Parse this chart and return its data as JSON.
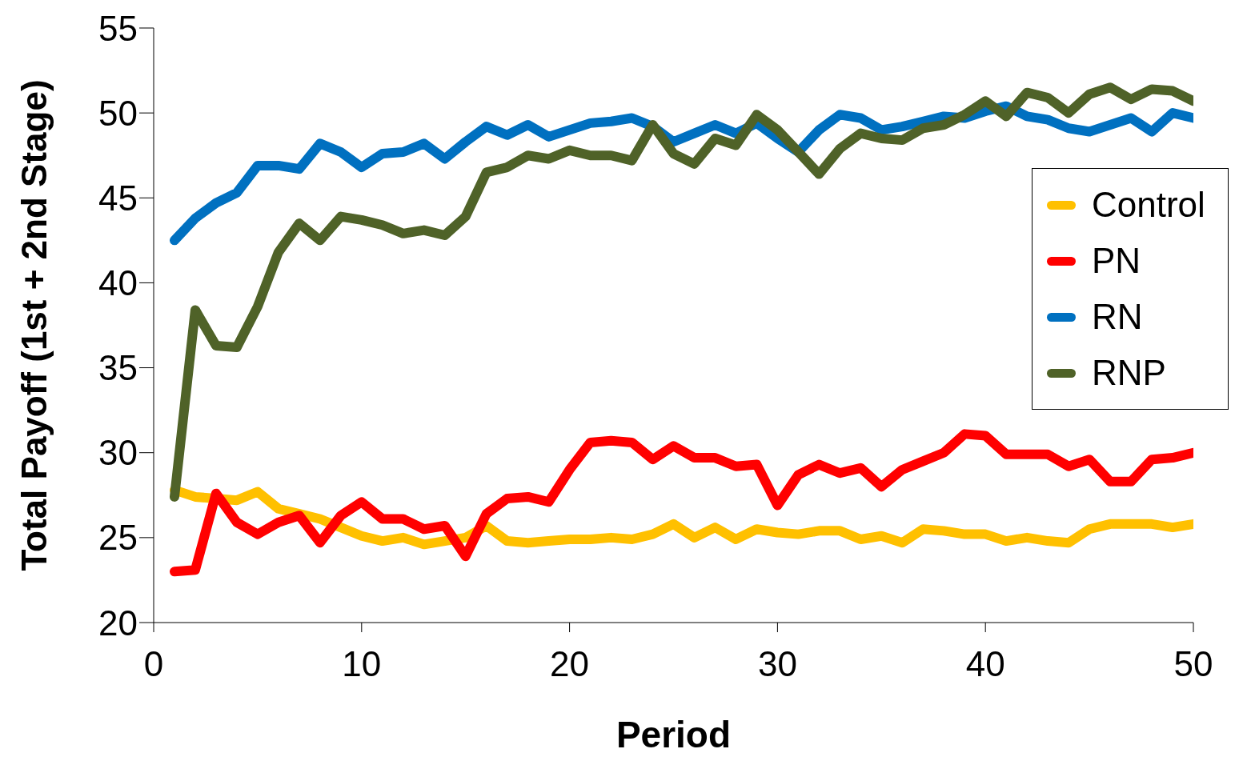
{
  "chart_data": {
    "type": "line",
    "xlabel": "Period",
    "ylabel": "Total Payoff (1st + 2nd Stage)",
    "x": [
      1,
      2,
      3,
      4,
      5,
      6,
      7,
      8,
      9,
      10,
      11,
      12,
      13,
      14,
      15,
      16,
      17,
      18,
      19,
      20,
      21,
      22,
      23,
      24,
      25,
      26,
      27,
      28,
      29,
      30,
      31,
      32,
      33,
      34,
      35,
      36,
      37,
      38,
      39,
      40,
      41,
      42,
      43,
      44,
      45,
      46,
      47,
      48,
      49,
      50
    ],
    "series": [
      {
        "name": "Control",
        "color": "#ffc000",
        "values": [
          27.8,
          27.4,
          27.3,
          27.2,
          27.7,
          26.7,
          26.4,
          26.1,
          25.6,
          25.1,
          24.8,
          25.0,
          24.6,
          24.8,
          25.0,
          25.7,
          24.8,
          24.7,
          24.8,
          24.9,
          24.9,
          25.0,
          24.9,
          25.2,
          25.8,
          25.0,
          25.6,
          24.9,
          25.5,
          25.3,
          25.2,
          25.4,
          25.4,
          24.9,
          25.1,
          24.7,
          25.5,
          25.4,
          25.2,
          25.2,
          24.8,
          25.0,
          24.8,
          24.7,
          25.5,
          25.8,
          25.8,
          25.8,
          25.6,
          25.8
        ]
      },
      {
        "name": "PN",
        "color": "#ff0000",
        "values": [
          23.0,
          23.1,
          27.6,
          25.9,
          25.2,
          25.9,
          26.3,
          24.7,
          26.3,
          27.1,
          26.1,
          26.1,
          25.5,
          25.7,
          23.9,
          26.4,
          27.3,
          27.4,
          27.1,
          29.0,
          30.6,
          30.7,
          30.6,
          29.6,
          30.4,
          29.7,
          29.7,
          29.2,
          29.3,
          26.9,
          28.7,
          29.3,
          28.8,
          29.1,
          28.0,
          29.0,
          29.5,
          30.0,
          31.1,
          31.0,
          29.9,
          29.9,
          29.9,
          29.2,
          29.6,
          28.3,
          28.3,
          29.6,
          29.7,
          30.0
        ]
      },
      {
        "name": "RN",
        "color": "#0070c0",
        "values": [
          42.5,
          43.8,
          44.7,
          45.3,
          46.9,
          46.9,
          46.7,
          48.2,
          47.7,
          46.8,
          47.6,
          47.7,
          48.2,
          47.3,
          48.3,
          49.2,
          48.7,
          49.3,
          48.6,
          49.0,
          49.4,
          49.5,
          49.7,
          49.2,
          48.3,
          48.8,
          49.3,
          48.8,
          49.4,
          48.5,
          47.7,
          49.0,
          49.9,
          49.7,
          49.0,
          49.2,
          49.5,
          49.8,
          49.7,
          50.1,
          50.4,
          49.8,
          49.6,
          49.1,
          48.9,
          49.3,
          49.7,
          48.9,
          50.0,
          49.7
        ]
      },
      {
        "name": "RNP",
        "color": "#4f6228",
        "values": [
          27.4,
          38.4,
          36.3,
          36.2,
          38.6,
          41.8,
          43.5,
          42.5,
          43.9,
          43.7,
          43.4,
          42.9,
          43.1,
          42.8,
          43.9,
          46.5,
          46.8,
          47.5,
          47.3,
          47.8,
          47.5,
          47.5,
          47.2,
          49.3,
          47.6,
          47.0,
          48.5,
          48.1,
          49.9,
          49.0,
          47.7,
          46.4,
          47.9,
          48.8,
          48.5,
          48.4,
          49.1,
          49.3,
          49.9,
          50.7,
          49.8,
          51.2,
          50.9,
          50.0,
          51.1,
          51.5,
          50.8,
          51.4,
          51.3,
          50.7
        ]
      }
    ],
    "xlim": [
      0,
      50
    ],
    "xticks": [
      0,
      10,
      20,
      30,
      40,
      50
    ],
    "ylim": [
      20,
      55
    ],
    "yticks": [
      20,
      25,
      30,
      35,
      40,
      45,
      50,
      55
    ],
    "grid": false,
    "legend": "right",
    "marker": "none",
    "line_style": "solid"
  }
}
